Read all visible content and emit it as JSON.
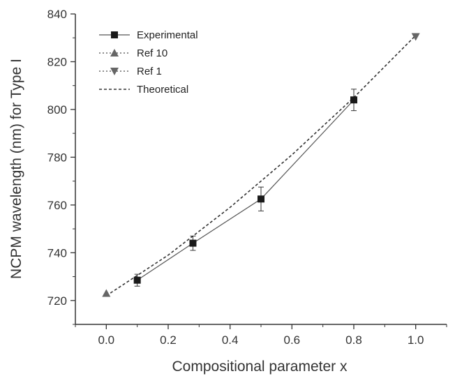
{
  "chart_data": {
    "type": "line",
    "title": "",
    "xlabel": "Compositional parameter x",
    "ylabel": "NCPM wavelength (nm) for Type I",
    "xlim": [
      -0.1,
      1.1
    ],
    "ylim": [
      710,
      840
    ],
    "xticks": [
      "0.0",
      "0.2",
      "0.4",
      "0.6",
      "0.8",
      "1.0"
    ],
    "xtick_values": [
      0.0,
      0.2,
      0.4,
      0.6,
      0.8,
      1.0
    ],
    "yticks": [
      "720",
      "740",
      "760",
      "780",
      "800",
      "820",
      "840"
    ],
    "ytick_values": [
      720,
      740,
      760,
      780,
      800,
      820,
      840
    ],
    "grid": false,
    "legend_position": "top-left",
    "series": [
      {
        "name": "Experimental",
        "marker": "square",
        "line": "solid",
        "color": "#555555",
        "points": [
          {
            "x": 0.1,
            "y": 728.5,
            "err": 2.5
          },
          {
            "x": 0.28,
            "y": 744,
            "err": 3
          },
          {
            "x": 0.5,
            "y": 762.5,
            "err": 5
          },
          {
            "x": 0.8,
            "y": 804,
            "err": 4.5
          }
        ]
      },
      {
        "name": "Ref 10",
        "marker": "triangle-up",
        "line": "dotted",
        "color": "#666666",
        "points": [
          {
            "x": 0.0,
            "y": 723
          }
        ]
      },
      {
        "name": "Ref 1",
        "marker": "triangle-down",
        "line": "dotted",
        "color": "#666666",
        "points": [
          {
            "x": 1.0,
            "y": 830.5
          }
        ]
      },
      {
        "name": "Theoretical",
        "marker": "none",
        "line": "dashed",
        "color": "#333333",
        "points": [
          {
            "x": 0.0,
            "y": 722
          },
          {
            "x": 0.2,
            "y": 739
          },
          {
            "x": 0.4,
            "y": 759
          },
          {
            "x": 0.6,
            "y": 781
          },
          {
            "x": 0.8,
            "y": 805
          },
          {
            "x": 1.0,
            "y": 831
          }
        ]
      }
    ]
  }
}
